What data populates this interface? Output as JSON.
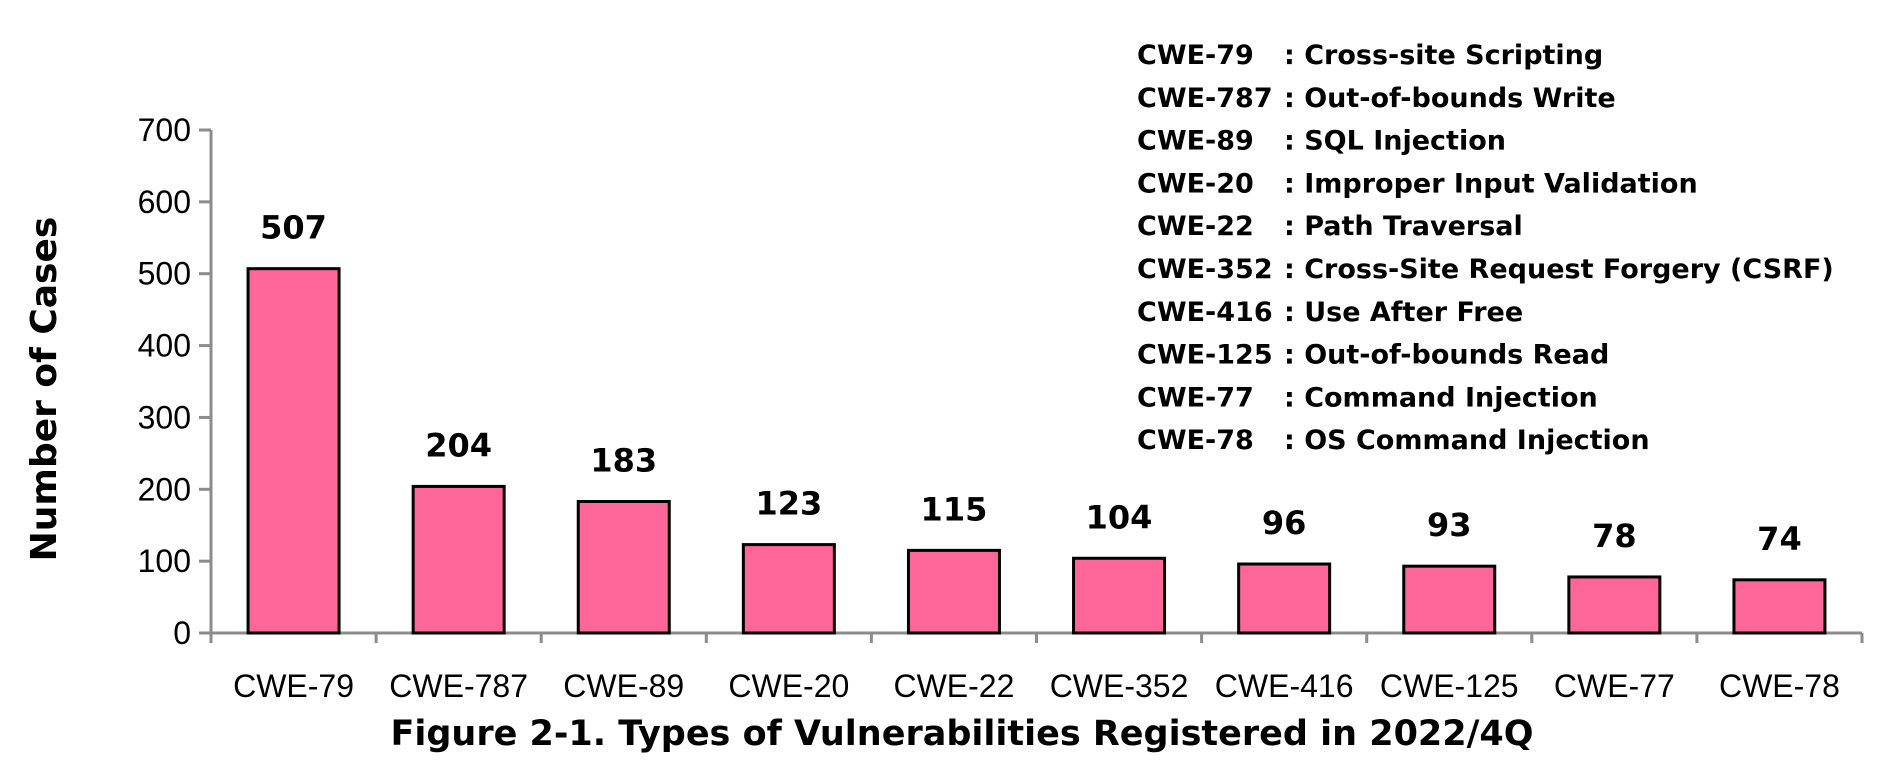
{
  "chart_data": {
    "type": "bar",
    "categories": [
      "CWE-79",
      "CWE-787",
      "CWE-89",
      "CWE-20",
      "CWE-22",
      "CWE-352",
      "CWE-416",
      "CWE-125",
      "CWE-77",
      "CWE-78"
    ],
    "values": [
      507,
      204,
      183,
      123,
      115,
      104,
      96,
      93,
      78,
      74
    ],
    "data_labels": [
      "507",
      "204",
      "183",
      "123",
      "115",
      "104",
      "96",
      "93",
      "78",
      "74"
    ],
    "title": "Figure 2-1. Types of Vulnerabilities Registered in 2022/4Q",
    "xlabel": "",
    "ylabel": "Number of Cases",
    "ylim": [
      0,
      700
    ],
    "yticks": [
      0,
      100,
      200,
      300,
      400,
      500,
      600,
      700
    ],
    "ytick_labels": [
      "0",
      "100",
      "200",
      "300",
      "400",
      "500",
      "600",
      "700"
    ],
    "grid": false,
    "bar_color": "#ff6699",
    "legend_placement": "top-right",
    "legend": [
      {
        "code": "CWE-79",
        "desc": ": Cross-site Scripting"
      },
      {
        "code": "CWE-787",
        "desc": ": Out-of-bounds Write"
      },
      {
        "code": "CWE-89",
        "desc": ": SQL Injection"
      },
      {
        "code": "CWE-20",
        "desc": ": Improper Input Validation"
      },
      {
        "code": "CWE-22",
        "desc": ": Path Traversal"
      },
      {
        "code": "CWE-352",
        "desc": ": Cross-Site Request Forgery (CSRF)"
      },
      {
        "code": "CWE-416",
        "desc": ": Use After Free"
      },
      {
        "code": "CWE-125",
        "desc": ": Out-of-bounds Read"
      },
      {
        "code": "CWE-77",
        "desc": ": Command Injection"
      },
      {
        "code": "CWE-78",
        "desc": ": OS Command Injection"
      }
    ]
  }
}
